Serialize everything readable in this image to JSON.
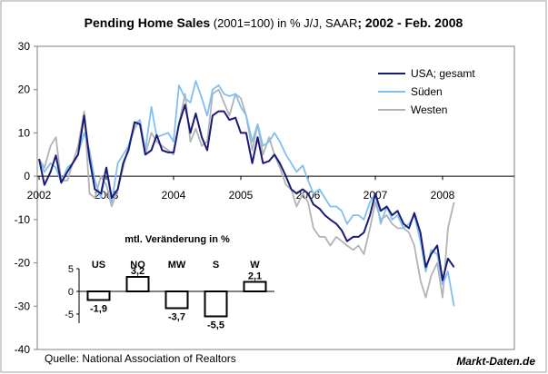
{
  "chart_data": [
    {
      "type": "line",
      "title_bold": "Pending Home Sales",
      "title_mid": " (2001=100) in % J/J, SAAR",
      "title_tail": "; 2002 - Feb. 2008",
      "xlabel": "",
      "ylabel": "",
      "ylim": [
        -40,
        30
      ],
      "yticks": [
        "30",
        "20",
        "10",
        "0",
        "-10",
        "-20",
        "-30",
        "-40"
      ],
      "xlim": [
        2002.0,
        2009.0
      ],
      "xticks": [
        "2002",
        "2003",
        "2004",
        "2005",
        "2006",
        "2007",
        "2008"
      ],
      "grid": false,
      "legend_position": "top-right",
      "source": "Quelle: National Association of Realtors",
      "brand": "Markt-Daten.de",
      "series": [
        {
          "name": "USA; gesamt",
          "color": "#1a1a78",
          "points": [
            [
              2002.0,
              4
            ],
            [
              2002.08,
              -2
            ],
            [
              2002.17,
              1
            ],
            [
              2002.25,
              4.8
            ],
            [
              2002.33,
              -1.5
            ],
            [
              2002.42,
              1
            ],
            [
              2002.5,
              3
            ],
            [
              2002.58,
              5
            ],
            [
              2002.67,
              14
            ],
            [
              2002.75,
              4
            ],
            [
              2002.83,
              -3
            ],
            [
              2002.92,
              -4
            ],
            [
              2003.0,
              2
            ],
            [
              2003.08,
              -5
            ],
            [
              2003.17,
              -3
            ],
            [
              2003.25,
              3
            ],
            [
              2003.33,
              6
            ],
            [
              2003.42,
              12.5
            ],
            [
              2003.5,
              12
            ],
            [
              2003.58,
              5
            ],
            [
              2003.67,
              6
            ],
            [
              2003.75,
              9.5
            ],
            [
              2003.83,
              6
            ],
            [
              2003.92,
              5.5
            ],
            [
              2004.0,
              5.5
            ],
            [
              2004.08,
              12
            ],
            [
              2004.17,
              16.5
            ],
            [
              2004.25,
              10
            ],
            [
              2004.33,
              14.5
            ],
            [
              2004.42,
              9
            ],
            [
              2004.5,
              6
            ],
            [
              2004.58,
              14
            ],
            [
              2004.67,
              15
            ],
            [
              2004.75,
              15
            ],
            [
              2004.83,
              13
            ],
            [
              2004.92,
              13.5
            ],
            [
              2005.0,
              10
            ],
            [
              2005.08,
              10
            ],
            [
              2005.17,
              3
            ],
            [
              2005.25,
              9
            ],
            [
              2005.33,
              3
            ],
            [
              2005.42,
              3.5
            ],
            [
              2005.5,
              5
            ],
            [
              2005.58,
              3
            ],
            [
              2005.67,
              0
            ],
            [
              2005.75,
              -3
            ],
            [
              2005.83,
              -4
            ],
            [
              2005.92,
              -3
            ],
            [
              2006.0,
              -4
            ],
            [
              2006.08,
              -6.5
            ],
            [
              2006.17,
              -7.5
            ],
            [
              2006.25,
              -9
            ],
            [
              2006.33,
              -10
            ],
            [
              2006.42,
              -11
            ],
            [
              2006.5,
              -12.5
            ],
            [
              2006.58,
              -15
            ],
            [
              2006.67,
              -14
            ],
            [
              2006.75,
              -14
            ],
            [
              2006.83,
              -13
            ],
            [
              2006.92,
              -9
            ],
            [
              2007.0,
              -4
            ],
            [
              2007.08,
              -8
            ],
            [
              2007.17,
              -7
            ],
            [
              2007.25,
              -9
            ],
            [
              2007.33,
              -8
            ],
            [
              2007.42,
              -11
            ],
            [
              2007.5,
              -12
            ],
            [
              2007.58,
              -8.5
            ],
            [
              2007.67,
              -13
            ],
            [
              2007.75,
              -21
            ],
            [
              2007.83,
              -18
            ],
            [
              2007.92,
              -16
            ],
            [
              2008.0,
              -24
            ],
            [
              2008.08,
              -19
            ],
            [
              2008.17,
              -21
            ]
          ]
        },
        {
          "name": "Süden",
          "color": "#80c0f0",
          "points": [
            [
              2002.0,
              4
            ],
            [
              2002.08,
              1
            ],
            [
              2002.17,
              3
            ],
            [
              2002.25,
              2
            ],
            [
              2002.33,
              -1.5
            ],
            [
              2002.42,
              2
            ],
            [
              2002.5,
              3
            ],
            [
              2002.58,
              5
            ],
            [
              2002.67,
              10
            ],
            [
              2002.75,
              6
            ],
            [
              2002.83,
              -1
            ],
            [
              2002.92,
              -5
            ],
            [
              2003.0,
              2
            ],
            [
              2003.08,
              -6
            ],
            [
              2003.17,
              3
            ],
            [
              2003.25,
              5
            ],
            [
              2003.33,
              7
            ],
            [
              2003.42,
              12
            ],
            [
              2003.5,
              13
            ],
            [
              2003.58,
              6
            ],
            [
              2003.67,
              16
            ],
            [
              2003.75,
              9
            ],
            [
              2003.83,
              9.5
            ],
            [
              2003.92,
              10
            ],
            [
              2004.0,
              8
            ],
            [
              2004.08,
              21
            ],
            [
              2004.17,
              18
            ],
            [
              2004.25,
              17
            ],
            [
              2004.33,
              22
            ],
            [
              2004.42,
              18
            ],
            [
              2004.5,
              14
            ],
            [
              2004.58,
              20
            ],
            [
              2004.67,
              21
            ],
            [
              2004.75,
              19
            ],
            [
              2004.83,
              18.5
            ],
            [
              2004.92,
              19
            ],
            [
              2005.0,
              16
            ],
            [
              2005.08,
              14
            ],
            [
              2005.17,
              8
            ],
            [
              2005.25,
              12
            ],
            [
              2005.33,
              7
            ],
            [
              2005.42,
              8
            ],
            [
              2005.5,
              10
            ],
            [
              2005.58,
              8
            ],
            [
              2005.67,
              5
            ],
            [
              2005.75,
              3
            ],
            [
              2005.83,
              1
            ],
            [
              2005.92,
              2.5
            ],
            [
              2006.0,
              -1
            ],
            [
              2006.08,
              -4
            ],
            [
              2006.17,
              -3
            ],
            [
              2006.25,
              -5
            ],
            [
              2006.33,
              -7
            ],
            [
              2006.42,
              -7
            ],
            [
              2006.5,
              -8
            ],
            [
              2006.58,
              -11
            ],
            [
              2006.67,
              -9
            ],
            [
              2006.75,
              -9
            ],
            [
              2006.83,
              -10
            ],
            [
              2006.92,
              -6
            ],
            [
              2007.0,
              -4
            ],
            [
              2007.08,
              -11
            ],
            [
              2007.17,
              -7
            ],
            [
              2007.25,
              -10
            ],
            [
              2007.33,
              -9
            ],
            [
              2007.42,
              -12
            ],
            [
              2007.5,
              -11
            ],
            [
              2007.58,
              -9
            ],
            [
              2007.67,
              -15
            ],
            [
              2007.75,
              -22
            ],
            [
              2007.83,
              -17
            ],
            [
              2007.92,
              -18
            ],
            [
              2008.0,
              -25
            ],
            [
              2008.08,
              -22
            ],
            [
              2008.17,
              -30
            ]
          ]
        },
        {
          "name": "Westen",
          "color": "#b3b3b3",
          "points": [
            [
              2002.0,
              4
            ],
            [
              2002.08,
              2
            ],
            [
              2002.17,
              7
            ],
            [
              2002.25,
              9
            ],
            [
              2002.33,
              -1
            ],
            [
              2002.42,
              -1
            ],
            [
              2002.5,
              3
            ],
            [
              2002.58,
              7
            ],
            [
              2002.67,
              15
            ],
            [
              2002.75,
              -4
            ],
            [
              2002.83,
              -5
            ],
            [
              2002.92,
              0
            ],
            [
              2003.0,
              -2
            ],
            [
              2003.08,
              -7
            ],
            [
              2003.17,
              -3
            ],
            [
              2003.25,
              2
            ],
            [
              2003.33,
              7
            ],
            [
              2003.42,
              11
            ],
            [
              2003.5,
              13
            ],
            [
              2003.58,
              5
            ],
            [
              2003.67,
              10
            ],
            [
              2003.75,
              8
            ],
            [
              2003.83,
              7
            ],
            [
              2003.92,
              6
            ],
            [
              2004.0,
              5
            ],
            [
              2004.08,
              12
            ],
            [
              2004.17,
              19
            ],
            [
              2004.25,
              8
            ],
            [
              2004.33,
              11
            ],
            [
              2004.42,
              7
            ],
            [
              2004.5,
              8
            ],
            [
              2004.58,
              19
            ],
            [
              2004.67,
              20
            ],
            [
              2004.75,
              17
            ],
            [
              2004.83,
              14
            ],
            [
              2004.92,
              19
            ],
            [
              2005.0,
              18
            ],
            [
              2005.08,
              14
            ],
            [
              2005.17,
              6
            ],
            [
              2005.25,
              12
            ],
            [
              2005.33,
              5
            ],
            [
              2005.42,
              9
            ],
            [
              2005.5,
              5
            ],
            [
              2005.58,
              2
            ],
            [
              2005.67,
              -2
            ],
            [
              2005.75,
              -3
            ],
            [
              2005.83,
              -7
            ],
            [
              2005.92,
              -4
            ],
            [
              2006.0,
              -6
            ],
            [
              2006.08,
              -12
            ],
            [
              2006.17,
              -14
            ],
            [
              2006.25,
              -14
            ],
            [
              2006.33,
              -16
            ],
            [
              2006.42,
              -14
            ],
            [
              2006.5,
              -15
            ],
            [
              2006.58,
              -16
            ],
            [
              2006.67,
              -17
            ],
            [
              2006.75,
              -16
            ],
            [
              2006.83,
              -18
            ],
            [
              2006.92,
              -12
            ],
            [
              2007.0,
              -6
            ],
            [
              2007.08,
              -10
            ],
            [
              2007.17,
              -9
            ],
            [
              2007.25,
              -11
            ],
            [
              2007.33,
              -12
            ],
            [
              2007.42,
              -12
            ],
            [
              2007.5,
              -13
            ],
            [
              2007.58,
              -16
            ],
            [
              2007.67,
              -24
            ],
            [
              2007.75,
              -28
            ],
            [
              2007.83,
              -23
            ],
            [
              2007.92,
              -20
            ],
            [
              2008.0,
              -28
            ],
            [
              2008.08,
              -12
            ],
            [
              2008.17,
              -6
            ]
          ]
        }
      ]
    },
    {
      "type": "bar",
      "title": "mtl. Veränderung in %",
      "categories": [
        "US",
        "NO",
        "MW",
        "S",
        "W"
      ],
      "values": [
        -1.9,
        3.2,
        -3.7,
        -5.5,
        2.1
      ],
      "data_labels": [
        "-1,9",
        "3,2",
        "-3,7",
        "-5,5",
        "2,1"
      ],
      "ylim": [
        -7,
        5
      ],
      "yticks": [
        "5",
        "0",
        "-5"
      ]
    }
  ]
}
